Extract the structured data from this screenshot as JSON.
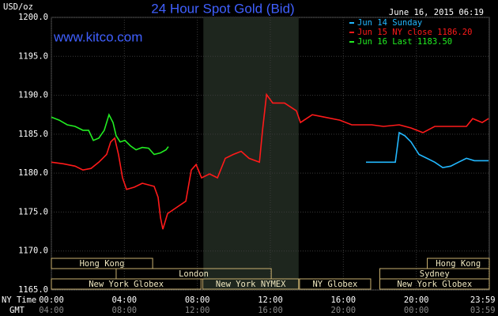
{
  "chart_data": {
    "type": "line",
    "title": "24 Hour Spot Gold (Bid)",
    "timestamp": "June 16, 2015 06:19",
    "watermark": "www.kitco.com",
    "y_label": "USD/oz",
    "x_label": "NY Time",
    "x2_label": "GMT",
    "xlim": [
      0,
      24
    ],
    "ylim": [
      1165,
      1200
    ],
    "yticks": [
      {
        "value": 1165,
        "label": "1165.0"
      },
      {
        "value": 1170,
        "label": "1170.0"
      },
      {
        "value": 1175,
        "label": "1175.0"
      },
      {
        "value": 1180,
        "label": "1180.0"
      },
      {
        "value": 1185,
        "label": "1185.0"
      },
      {
        "value": 1190,
        "label": "1190.0"
      },
      {
        "value": 1195,
        "label": "1195.0"
      },
      {
        "value": 1200,
        "label": "1200.0"
      }
    ],
    "xticks": [
      {
        "value": 0,
        "label": "00:00"
      },
      {
        "value": 4,
        "label": "04:00"
      },
      {
        "value": 8,
        "label": "08:00"
      },
      {
        "value": 12,
        "label": "12:00"
      },
      {
        "value": 16,
        "label": "16:00"
      },
      {
        "value": 20,
        "label": "20:00"
      },
      {
        "value": 23.98,
        "label": "23:59"
      }
    ],
    "gmt_labels": [
      "04:00",
      "08:00",
      "12:00",
      "16:00",
      "20:00",
      "00:00",
      "03:59"
    ],
    "grid": true,
    "shade": [
      8.33,
      13.55
    ],
    "sessions": [
      {
        "name": "Hong Kong",
        "row": 0,
        "start": 0,
        "end": 5.55
      },
      {
        "name": "Hong Kong",
        "row": 0,
        "start": 20.6,
        "end": 24
      },
      {
        "name": "London",
        "row": 1,
        "start": 3.55,
        "end": 12.05
      },
      {
        "name": "Sydney",
        "row": 1,
        "start": 18,
        "end": 24
      },
      {
        "name": "New York Globex",
        "row": 2,
        "start": 0,
        "end": 8.2
      },
      {
        "name": "New York NYMEX",
        "row": 2,
        "start": 8.3,
        "end": 13.55
      },
      {
        "name": "NY Globex",
        "row": 2,
        "start": 13.6,
        "end": 17.5
      },
      {
        "name": "New York Globex",
        "row": 2,
        "start": 18,
        "end": 24
      }
    ],
    "series": [
      {
        "name": "Jun 14 Sunday",
        "color": "#22b8ff",
        "x": [
          17.24,
          18.85,
          19.06,
          19.37,
          19.71,
          20.15,
          20.58,
          21.01,
          21.45,
          21.88,
          22.31,
          22.75,
          23.18,
          23.96
        ],
        "values": [
          1181.4,
          1181.4,
          1185.2,
          1184.8,
          1184.0,
          1182.4,
          1181.9,
          1181.4,
          1180.7,
          1180.9,
          1181.4,
          1181.9,
          1181.6,
          1181.6
        ]
      },
      {
        "name": "Jun 15 NY close 1186.20",
        "color": "#ff1a1a",
        "x": [
          0,
          0.65,
          1.3,
          1.73,
          2.17,
          2.6,
          3.03,
          3.25,
          3.47,
          3.68,
          3.9,
          4.12,
          4.55,
          4.98,
          5.63,
          5.85,
          5.98,
          6.11,
          6.37,
          6.93,
          7.37,
          7.67,
          7.93,
          8.23,
          8.67,
          9.1,
          9.53,
          9.97,
          10.4,
          10.83,
          11.4,
          11.57,
          11.79,
          12.13,
          12.78,
          13.43,
          13.65,
          14.3,
          14.95,
          15.81,
          16.46,
          17.55,
          18.2,
          19.06,
          19.71,
          20.36,
          21.01,
          21.88,
          22.75,
          23.09,
          23.61,
          23.96
        ],
        "values": [
          1181.4,
          1181.2,
          1180.9,
          1180.4,
          1180.6,
          1181.4,
          1182.4,
          1184.0,
          1184.5,
          1182.4,
          1179.4,
          1177.9,
          1178.2,
          1178.7,
          1178.3,
          1176.9,
          1174.3,
          1172.8,
          1174.8,
          1175.7,
          1176.4,
          1180.4,
          1181.1,
          1179.4,
          1179.9,
          1179.4,
          1181.9,
          1182.4,
          1182.8,
          1181.9,
          1181.4,
          1185.5,
          1190.1,
          1189.0,
          1189.0,
          1188.0,
          1186.5,
          1187.5,
          1187.2,
          1186.8,
          1186.2,
          1186.2,
          1186.0,
          1186.2,
          1185.8,
          1185.2,
          1186.0,
          1186.0,
          1186.0,
          1187.0,
          1186.5,
          1187.0
        ]
      },
      {
        "name": "Jun 16 Last 1183.50",
        "color": "#22ee22",
        "x": [
          0,
          0.43,
          0.87,
          1.3,
          1.73,
          2.04,
          2.3,
          2.6,
          2.9,
          3.16,
          3.38,
          3.55,
          3.77,
          4.03,
          4.33,
          4.64,
          4.98,
          5.33,
          5.63,
          5.98,
          6.28,
          6.41
        ],
        "values": [
          1187.2,
          1186.8,
          1186.2,
          1186.0,
          1185.5,
          1185.5,
          1184.2,
          1184.5,
          1185.5,
          1187.5,
          1186.5,
          1184.8,
          1184.0,
          1184.2,
          1183.5,
          1183.0,
          1183.3,
          1183.2,
          1182.4,
          1182.6,
          1183.0,
          1183.4
        ]
      }
    ]
  }
}
